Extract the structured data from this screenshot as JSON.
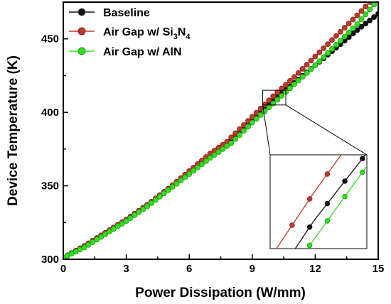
{
  "chart_data": {
    "type": "line",
    "xlabel": "Power Dissipation (W/mm)",
    "ylabel": "Device Temperature (K)",
    "xlim": [
      0,
      15
    ],
    "ylim": [
      300,
      475
    ],
    "xticks": [
      0,
      3,
      6,
      9,
      12,
      15
    ],
    "yticks": [
      300,
      350,
      400,
      450
    ],
    "legend_position": "top-left",
    "series": [
      {
        "name": "Baseline",
        "color": "#111111",
        "x": [
          0,
          1,
          2,
          3,
          4,
          5,
          6,
          7,
          7.8,
          8.0,
          9,
          10,
          11,
          12,
          13,
          14,
          15
        ],
        "y": [
          301,
          309,
          318,
          327,
          337,
          348,
          359,
          371,
          379,
          382,
          394,
          408,
          420,
          432,
          444,
          456,
          467
        ]
      },
      {
        "name": "Air Gap w/ Si3N4",
        "legend_main": "Air Gap w/ Si",
        "legend_sub1": "3",
        "legend_mid": "N",
        "legend_sub2": "4",
        "color": "#c0392b",
        "x": [
          0,
          1,
          2,
          3,
          4,
          5,
          6,
          7,
          7.8,
          8.0,
          9,
          10,
          11,
          12,
          13,
          14,
          14.6
        ],
        "y": [
          301,
          309,
          318,
          327,
          337,
          348,
          360,
          372,
          380,
          383,
          397,
          411,
          424,
          438,
          452,
          466,
          475
        ]
      },
      {
        "name": "Air Gap w/ AlN",
        "color": "#33dd22",
        "x": [
          0,
          1,
          2,
          3,
          4,
          5,
          6,
          7,
          7.8,
          8.0,
          9,
          10,
          11,
          12,
          13,
          14,
          14.9
        ],
        "y": [
          301,
          308,
          317,
          326,
          336,
          347,
          358,
          369,
          377,
          379,
          393,
          406,
          419,
          432,
          446,
          460,
          475
        ]
      }
    ],
    "zoom_region": {
      "x": [
        9.5,
        10.6
      ],
      "y": [
        405,
        415
      ]
    }
  }
}
